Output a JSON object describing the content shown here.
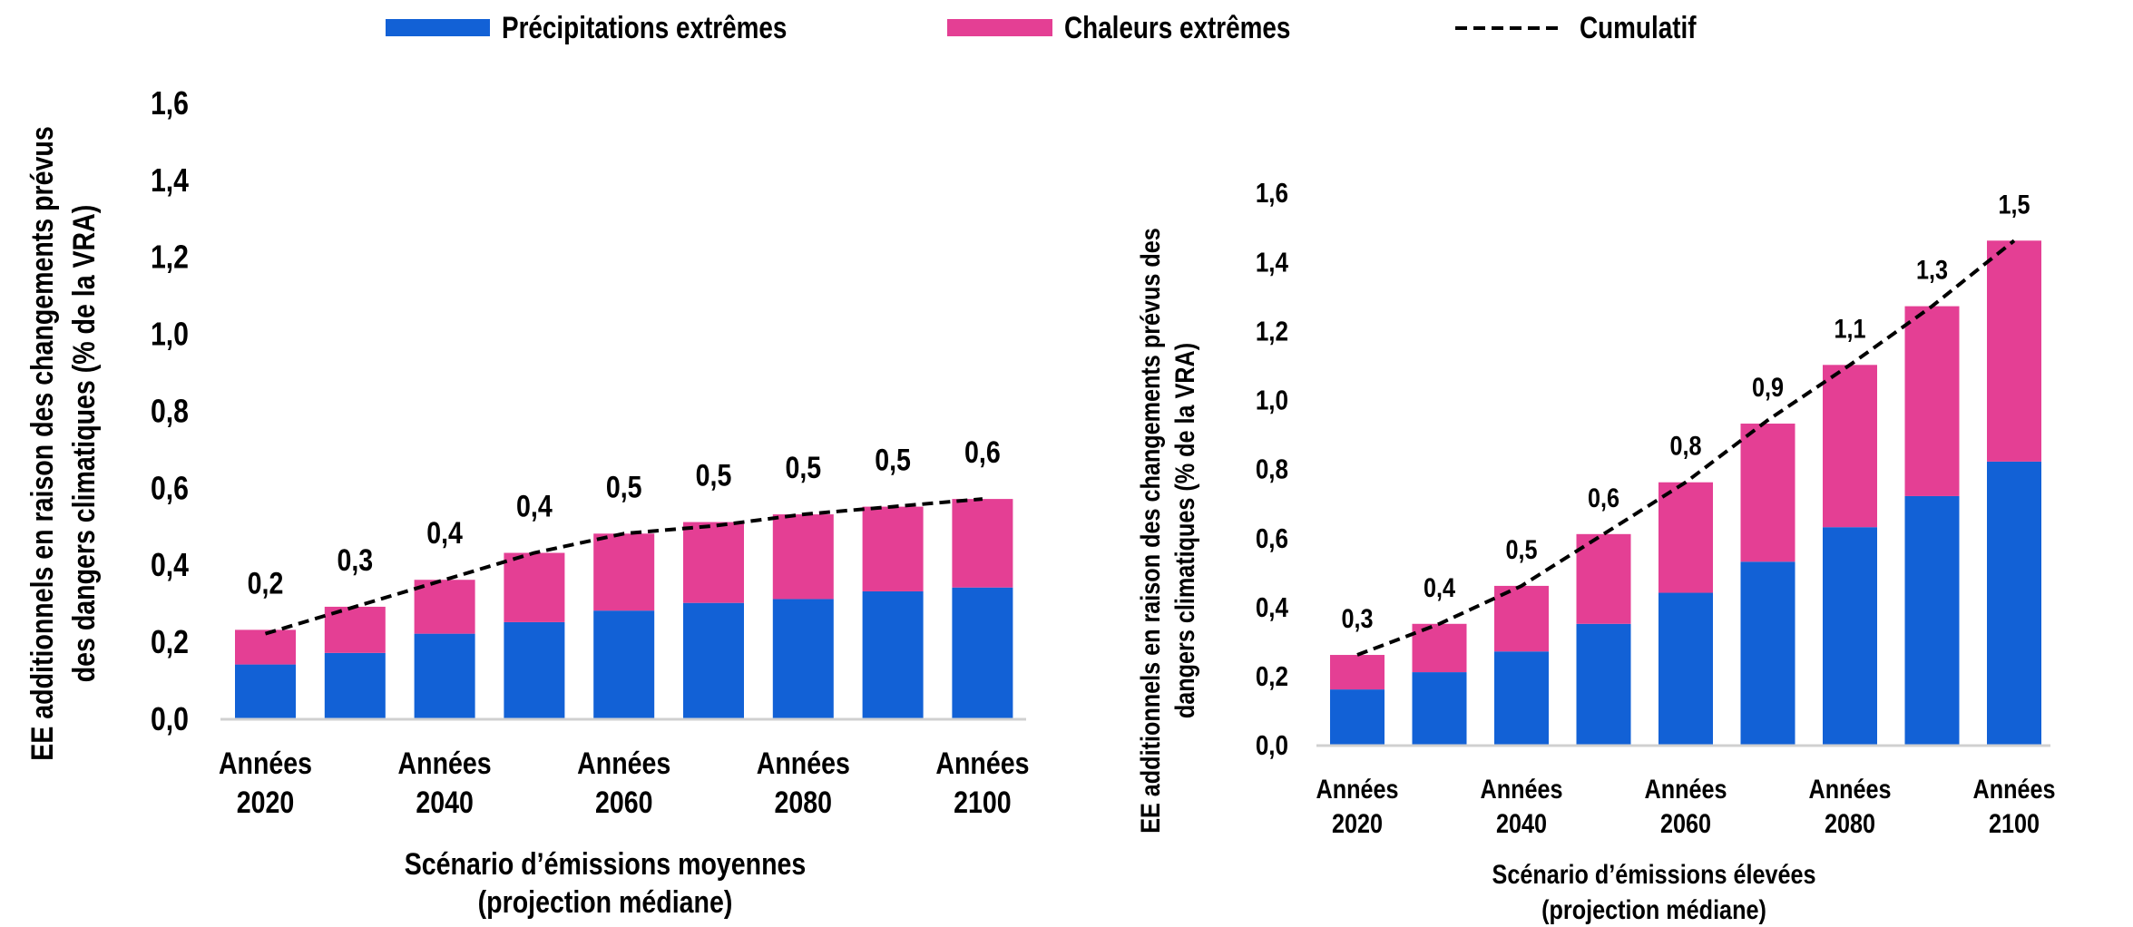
{
  "legend": [
    {
      "label": "Précipitations extrêmes",
      "color": "#1261d6",
      "kind": "bar"
    },
    {
      "label": "Chaleurs extrêmes",
      "color": "#e43f94",
      "kind": "bar"
    },
    {
      "label": "Cumulatif",
      "color": "#000000",
      "kind": "dashed-line"
    }
  ],
  "chart_data": [
    {
      "type": "bar",
      "stacked": true,
      "ylabel": [
        "EE additionnels en raison des changements prévus",
        "des dangers climatiques (% de la VRA)"
      ],
      "xlabel": [
        "Scénario d’émissions moyennes",
        "(projection médiane)"
      ],
      "ylim": [
        0,
        1.6
      ],
      "yticks": [
        "0,0",
        "0,2",
        "0,4",
        "0,6",
        "0,8",
        "1,0",
        "1,2",
        "1,4",
        "1,6"
      ],
      "categories": [
        [
          "Années",
          "2020"
        ],
        [
          "",
          ""
        ],
        [
          "Années",
          "2040"
        ],
        [
          "",
          ""
        ],
        [
          "Années",
          "2060"
        ],
        [
          "",
          ""
        ],
        [
          "Années",
          "2080"
        ],
        [
          "",
          ""
        ],
        [
          "Années",
          "2100"
        ]
      ],
      "series": [
        {
          "name": "Précipitations extrêmes",
          "values": [
            0.14,
            0.17,
            0.22,
            0.25,
            0.28,
            0.3,
            0.31,
            0.33,
            0.34
          ]
        },
        {
          "name": "Chaleurs extrêmes",
          "values": [
            0.09,
            0.12,
            0.14,
            0.18,
            0.2,
            0.21,
            0.22,
            0.22,
            0.23
          ]
        }
      ],
      "cumulative": {
        "name": "Cumulatif",
        "values": [
          0.22,
          0.29,
          0.36,
          0.43,
          0.48,
          0.5,
          0.53,
          0.55,
          0.57
        ]
      },
      "data_labels": [
        "0,2",
        "0,3",
        "0,4",
        "0,4",
        "0,5",
        "0,5",
        "0,5",
        "0,5",
        "0,6"
      ]
    },
    {
      "type": "bar",
      "stacked": true,
      "ylabel": [
        "EE additionnels en raison des changements prévus des",
        "dangers climatiques (% de la VRA)"
      ],
      "xlabel": [
        "Scénario d’émissions élevées",
        "(projection médiane)"
      ],
      "ylim": [
        0,
        1.6
      ],
      "yticks": [
        "0,0",
        "0,2",
        "0,4",
        "0,6",
        "0,8",
        "1,0",
        "1,2",
        "1,4",
        "1,6"
      ],
      "categories": [
        [
          "Années",
          "2020"
        ],
        [
          "",
          ""
        ],
        [
          "Années",
          "2040"
        ],
        [
          "",
          ""
        ],
        [
          "Années",
          "2060"
        ],
        [
          "",
          ""
        ],
        [
          "Années",
          "2080"
        ],
        [
          "",
          ""
        ],
        [
          "Années",
          "2100"
        ]
      ],
      "series": [
        {
          "name": "Précipitations extrêmes",
          "values": [
            0.16,
            0.21,
            0.27,
            0.35,
            0.44,
            0.53,
            0.63,
            0.72,
            0.82
          ]
        },
        {
          "name": "Chaleurs extrêmes",
          "values": [
            0.1,
            0.14,
            0.19,
            0.26,
            0.32,
            0.4,
            0.47,
            0.55,
            0.64
          ]
        }
      ],
      "cumulative": {
        "name": "Cumulatif",
        "values": [
          0.26,
          0.35,
          0.46,
          0.61,
          0.76,
          0.94,
          1.1,
          1.27,
          1.46
        ]
      },
      "data_labels": [
        "0,3",
        "0,4",
        "0,5",
        "0,6",
        "0,8",
        "0,9",
        "1,1",
        "1,3",
        "1,5"
      ]
    }
  ]
}
